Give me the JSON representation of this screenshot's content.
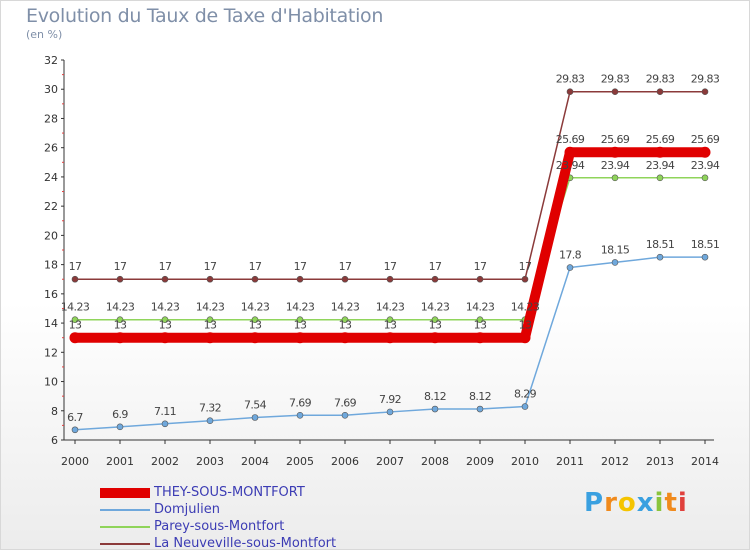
{
  "chart_data": {
    "type": "line",
    "title": "Evolution du Taux de Taxe d'Habitation",
    "subtitle": "(en %)",
    "x": [
      "2000",
      "2001",
      "2002",
      "2003",
      "2004",
      "2005",
      "2006",
      "2007",
      "2008",
      "2009",
      "2010",
      "2011",
      "2012",
      "2013",
      "2014"
    ],
    "ylim": [
      6,
      32
    ],
    "yticks": [
      6,
      8,
      10,
      12,
      14,
      16,
      18,
      20,
      22,
      24,
      26,
      28,
      30,
      32
    ],
    "grid": false,
    "legend_position": "bottom-left",
    "series": [
      {
        "name": "THEY-SOUS-MONTFORT",
        "color": "#e00000",
        "values": [
          13,
          13,
          13,
          13,
          13,
          13,
          13,
          13,
          13,
          13,
          13,
          25.69,
          25.69,
          25.69,
          25.69
        ],
        "labels": [
          "13",
          "13",
          "13",
          "13",
          "13",
          "13",
          "13",
          "13",
          "13",
          "13",
          "13",
          "25.69",
          "25.69",
          "25.69",
          "25.69"
        ]
      },
      {
        "name": "Domjulien",
        "color": "#6fa8dc",
        "values": [
          6.7,
          6.9,
          7.11,
          7.32,
          7.54,
          7.69,
          7.69,
          7.92,
          8.12,
          8.12,
          8.29,
          17.8,
          18.15,
          18.51,
          18.51
        ],
        "labels": [
          "6.7",
          "6.9",
          "7.11",
          "7.32",
          "7.54",
          "7.69",
          "7.69",
          "7.92",
          "8.12",
          "8.12",
          "8.29",
          "17.8",
          "18.15",
          "18.51",
          "18.51"
        ]
      },
      {
        "name": "Parey-sous-Montfort",
        "color": "#8fd45a",
        "values": [
          14.23,
          14.23,
          14.23,
          14.23,
          14.23,
          14.23,
          14.23,
          14.23,
          14.23,
          14.23,
          14.23,
          23.94,
          23.94,
          23.94,
          23.94
        ],
        "labels": [
          "14.23",
          "14.23",
          "14.23",
          "14.23",
          "14.23",
          "14.23",
          "14.23",
          "14.23",
          "14.23",
          "14.23",
          "14.23",
          "23.94",
          "23.94",
          "23.94",
          "23.94"
        ]
      },
      {
        "name": "La Neuveville-sous-Montfort",
        "color": "#8b3a3a",
        "values": [
          17,
          17,
          17,
          17,
          17,
          17,
          17,
          17,
          17,
          17,
          17,
          29.83,
          29.83,
          29.83,
          29.83
        ],
        "labels": [
          "17",
          "17",
          "17",
          "17",
          "17",
          "17",
          "17",
          "17",
          "17",
          "17",
          "17",
          "29.83",
          "29.83",
          "29.83",
          "29.83"
        ]
      }
    ]
  },
  "brand": {
    "letters": [
      "P",
      "r",
      "o",
      "x",
      "i",
      "t",
      "i"
    ],
    "colors": [
      "#3aa0e0",
      "#f08a1c",
      "#f5c400",
      "#3aa0e0",
      "#8ac43c",
      "#f08a1c",
      "#e0403c"
    ]
  }
}
